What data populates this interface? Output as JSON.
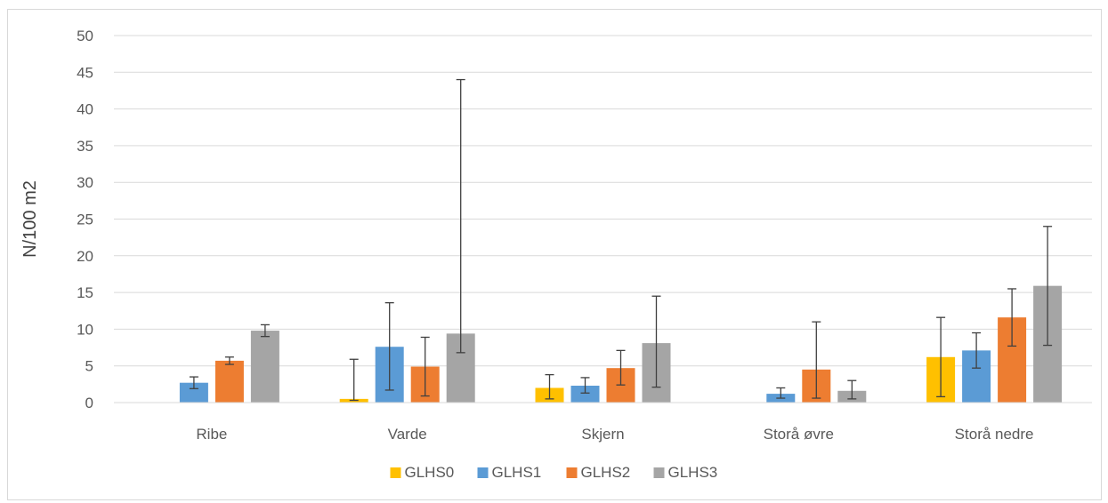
{
  "chart_data": {
    "type": "bar",
    "title": "",
    "xlabel": "",
    "ylabel": "N/100 m2",
    "ylim": [
      0,
      50
    ],
    "yticks": [
      "0",
      "5",
      "10",
      "15",
      "20",
      "25",
      "30",
      "35",
      "40",
      "45",
      "50"
    ],
    "grid": true,
    "legend_position": "bottom",
    "categories": [
      "Ribe",
      "Varde",
      "Skjern",
      "Storå øvre",
      "Storå nedre"
    ],
    "series": [
      {
        "name": "GLHS0",
        "color": "#FFC000",
        "values": [
          null,
          0.5,
          2.0,
          null,
          6.2
        ],
        "err_low": [
          null,
          0.3,
          0.5,
          null,
          0.8
        ],
        "err_high": [
          null,
          5.9,
          3.8,
          null,
          11.6
        ]
      },
      {
        "name": "GLHS1",
        "color": "#5B9BD5",
        "values": [
          2.7,
          7.6,
          2.3,
          1.2,
          7.1
        ],
        "err_low": [
          1.9,
          1.7,
          1.3,
          0.6,
          4.7
        ],
        "err_high": [
          3.5,
          13.6,
          3.4,
          2.0,
          9.5
        ]
      },
      {
        "name": "GLHS2",
        "color": "#ED7D31",
        "values": [
          5.7,
          4.9,
          4.7,
          4.5,
          11.6
        ],
        "err_low": [
          5.2,
          0.9,
          2.4,
          0.6,
          7.7
        ],
        "err_high": [
          6.2,
          8.9,
          7.1,
          11.0,
          15.5
        ]
      },
      {
        "name": "GLHS3",
        "color": "#A5A5A5",
        "values": [
          9.8,
          9.4,
          8.1,
          1.6,
          15.9
        ],
        "err_low": [
          9.0,
          6.8,
          2.1,
          0.5,
          7.8
        ],
        "err_high": [
          10.6,
          44.0,
          14.5,
          3.0,
          24.0
        ]
      }
    ]
  }
}
